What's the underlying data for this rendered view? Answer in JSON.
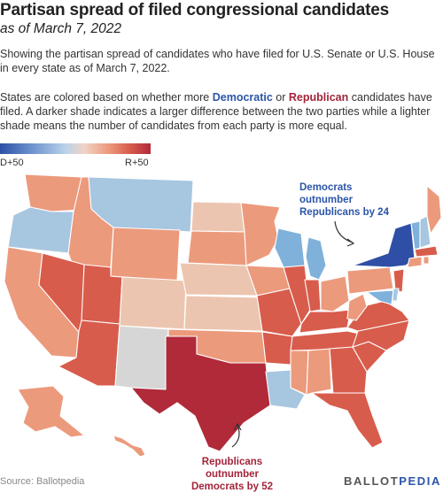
{
  "header": {
    "title": "Partisan spread of filed congressional candidates",
    "subtitle": "as of March 7, 2022"
  },
  "description": {
    "p1": "Showing the partisan spread of candidates who have filed for U.S. Senate or U.S. House in every state as of March 7, 2022.",
    "p2_before": "States are colored based on whether more ",
    "p2_dem": "Democratic",
    "p2_or": " or ",
    "p2_rep": "Republican",
    "p2_after": " candidates have filed. A darker shade indicates a larger difference between the two parties while a lighter shade means the number of candidates from each party is more equal."
  },
  "legend": {
    "left_label": "D+50",
    "right_label": "R+50"
  },
  "annotations": {
    "dem": "Democrats outnumber Republicans by 24",
    "rep": "Republicans outnumber Democrats by 52"
  },
  "footer": {
    "source": "Source: Ballotpedia",
    "logo_part1": "BALLOT",
    "logo_part2": "PEDIA"
  },
  "colors": {
    "strong_rep": "#b02a3a",
    "rep": "#d85c4c",
    "mid_rep": "#ec9a7c",
    "light_rep": "#f0b49b",
    "neutral_rep": "#ecc5b0",
    "light_dem": "#a7c6e0",
    "mid_dem": "#7fb1da",
    "strong_dem": "#2f4fa6",
    "no_data": "#d6d6d6"
  }
}
